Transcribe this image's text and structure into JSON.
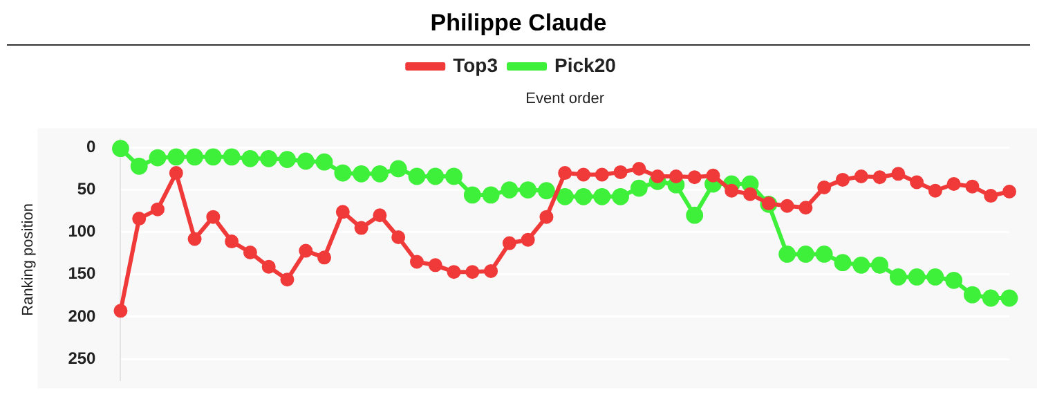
{
  "chart_data": {
    "type": "line",
    "title": "Philippe Claude",
    "xlabel": "Event order",
    "ylabel": "Ranking position",
    "categories": [
      null,
      null,
      null,
      null,
      null,
      null,
      null,
      null,
      null,
      null,
      null,
      null,
      null,
      null,
      null,
      null,
      null,
      null,
      null,
      null,
      null,
      null,
      null,
      null,
      null,
      null,
      null,
      null,
      null,
      null,
      null,
      null,
      null,
      null,
      null,
      null,
      null,
      null,
      null,
      null,
      null,
      null,
      null,
      null,
      null,
      null,
      null,
      null,
      null
    ],
    "series": [
      {
        "name": "Top3",
        "color": "#f03a3a",
        "values": [
          193,
          84,
          73,
          30,
          108,
          82,
          111,
          124,
          141,
          156,
          122,
          130,
          76,
          95,
          80,
          106,
          135,
          139,
          147,
          147,
          146,
          113,
          109,
          82,
          30,
          32,
          32,
          29,
          25,
          34,
          34,
          35,
          33,
          51,
          55,
          66,
          69,
          71,
          47,
          38,
          34,
          35,
          31,
          41,
          51,
          43,
          46,
          57,
          52
        ]
      },
      {
        "name": "Pick20",
        "color": "#3ef03a",
        "values": [
          1,
          22,
          12,
          11,
          11,
          11,
          11,
          13,
          13,
          14,
          16,
          17,
          30,
          31,
          31,
          25,
          34,
          34,
          34,
          56,
          56,
          50,
          50,
          51,
          58,
          58,
          58,
          58,
          48,
          40,
          44,
          80,
          43,
          43,
          43,
          67,
          126,
          126,
          126,
          136,
          139,
          139,
          153,
          153,
          153,
          157,
          174,
          178,
          178
        ]
      }
    ],
    "ylim": [
      275,
      -10
    ],
    "yticks": [
      0,
      50,
      100,
      150,
      200,
      250
    ],
    "grid": "y",
    "legend": "top",
    "marker": "circle",
    "line_style": "solid"
  }
}
